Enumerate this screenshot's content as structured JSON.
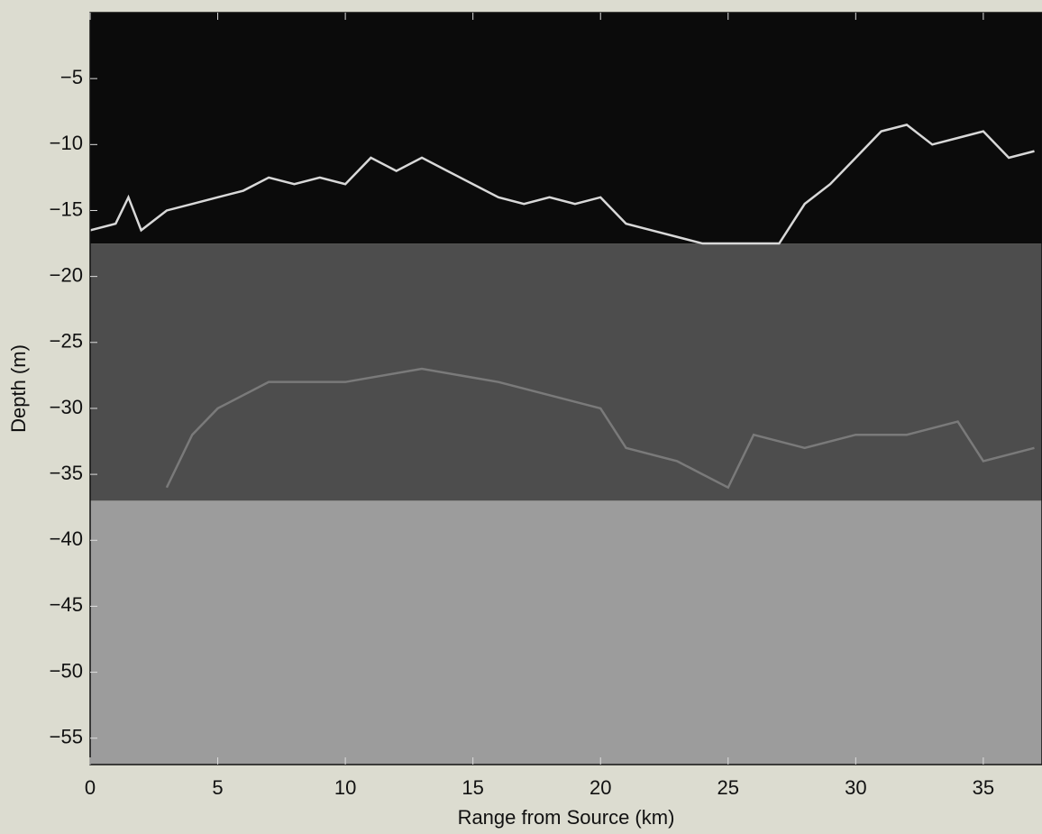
{
  "chart_data": {
    "type": "line",
    "xlabel": "Range from Source (km)",
    "ylabel": "Depth (m)",
    "xlim": [
      0,
      37.3
    ],
    "xticks": [
      0,
      5,
      10,
      15,
      20,
      25,
      30,
      35
    ],
    "ylim": [
      -57,
      0
    ],
    "yticks": [
      {
        "value": -5,
        "label": "−5"
      },
      {
        "value": -10,
        "label": "−10"
      },
      {
        "value": -15,
        "label": "−15"
      },
      {
        "value": -20,
        "label": "−20"
      },
      {
        "value": -25,
        "label": "−25"
      },
      {
        "value": -30,
        "label": "−30"
      },
      {
        "value": -35,
        "label": "−35"
      },
      {
        "value": -40,
        "label": "−40"
      },
      {
        "value": -45,
        "label": "−45"
      },
      {
        "value": -50,
        "label": "−50"
      },
      {
        "value": -55,
        "label": "−55"
      }
    ],
    "layers": [
      {
        "color": "#0b0b0b",
        "top": 0,
        "bottom": -17.5
      },
      {
        "color": "#4d4d4d",
        "top": -17.5,
        "bottom": -37
      },
      {
        "color": "#9c9c9c",
        "top": -37,
        "bottom": -57
      }
    ],
    "series": [
      {
        "color": "#d8d8d8",
        "x": [
          0,
          1,
          1.5,
          2,
          3,
          4,
          5,
          6,
          7,
          8,
          9,
          10,
          11,
          12,
          13,
          14,
          15,
          16,
          17,
          18,
          19,
          20,
          21,
          22,
          23,
          24,
          25,
          26,
          27,
          27.5,
          28,
          29,
          30,
          31,
          32,
          33,
          34,
          35,
          36,
          37
        ],
        "values": [
          -16.5,
          -16,
          -14,
          -16.5,
          -15,
          -14.5,
          -14,
          -13.5,
          -12.5,
          -13,
          -12.5,
          -13,
          -11,
          -12,
          -11,
          -12,
          -13,
          -14,
          -14.5,
          -14,
          -14.5,
          -14,
          -16,
          -16.5,
          -17,
          -17.5,
          -17.5,
          -17.5,
          -17.5,
          -16,
          -14.5,
          -13,
          -11,
          -9,
          -8.5,
          -10,
          -9.5,
          -9,
          -11,
          -10.5
        ]
      },
      {
        "color": "#7a7a7a",
        "x": [
          3,
          4,
          5,
          7,
          10,
          13,
          16,
          18,
          20,
          21,
          23,
          24,
          25,
          26,
          28,
          30,
          32,
          34,
          35,
          37
        ],
        "values": [
          -36,
          -32,
          -30,
          -28,
          -28,
          -27,
          -28,
          -29,
          -30,
          -33,
          -34,
          -35,
          -36,
          -32,
          -33,
          -32,
          -32,
          -31,
          -34,
          -33
        ]
      }
    ]
  }
}
